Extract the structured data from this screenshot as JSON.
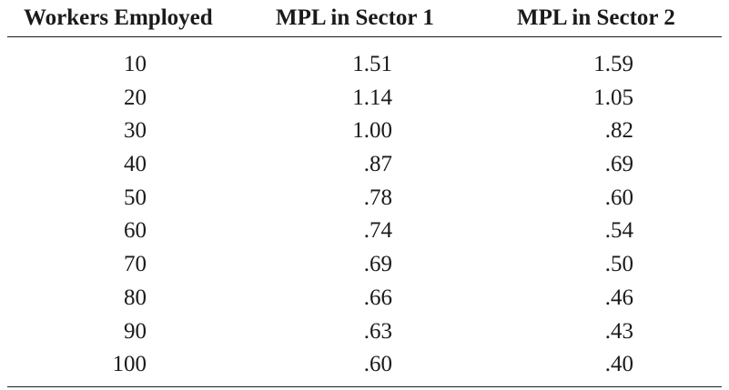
{
  "table": {
    "headers": {
      "workers": "Workers Employed",
      "sector1": "MPL in Sector 1",
      "sector2": "MPL in Sector 2"
    },
    "rows": [
      {
        "workers": "10",
        "sector1": "1.51",
        "sector2": "1.59"
      },
      {
        "workers": "20",
        "sector1": "1.14",
        "sector2": "1.05"
      },
      {
        "workers": "30",
        "sector1": "1.00",
        "sector2": ".82"
      },
      {
        "workers": "40",
        "sector1": ".87",
        "sector2": ".69"
      },
      {
        "workers": "50",
        "sector1": ".78",
        "sector2": ".60"
      },
      {
        "workers": "60",
        "sector1": ".74",
        "sector2": ".54"
      },
      {
        "workers": "70",
        "sector1": ".69",
        "sector2": ".50"
      },
      {
        "workers": "80",
        "sector1": ".66",
        "sector2": ".46"
      },
      {
        "workers": "90",
        "sector1": ".63",
        "sector2": ".43"
      },
      {
        "workers": "100",
        "sector1": ".60",
        "sector2": ".40"
      }
    ]
  }
}
